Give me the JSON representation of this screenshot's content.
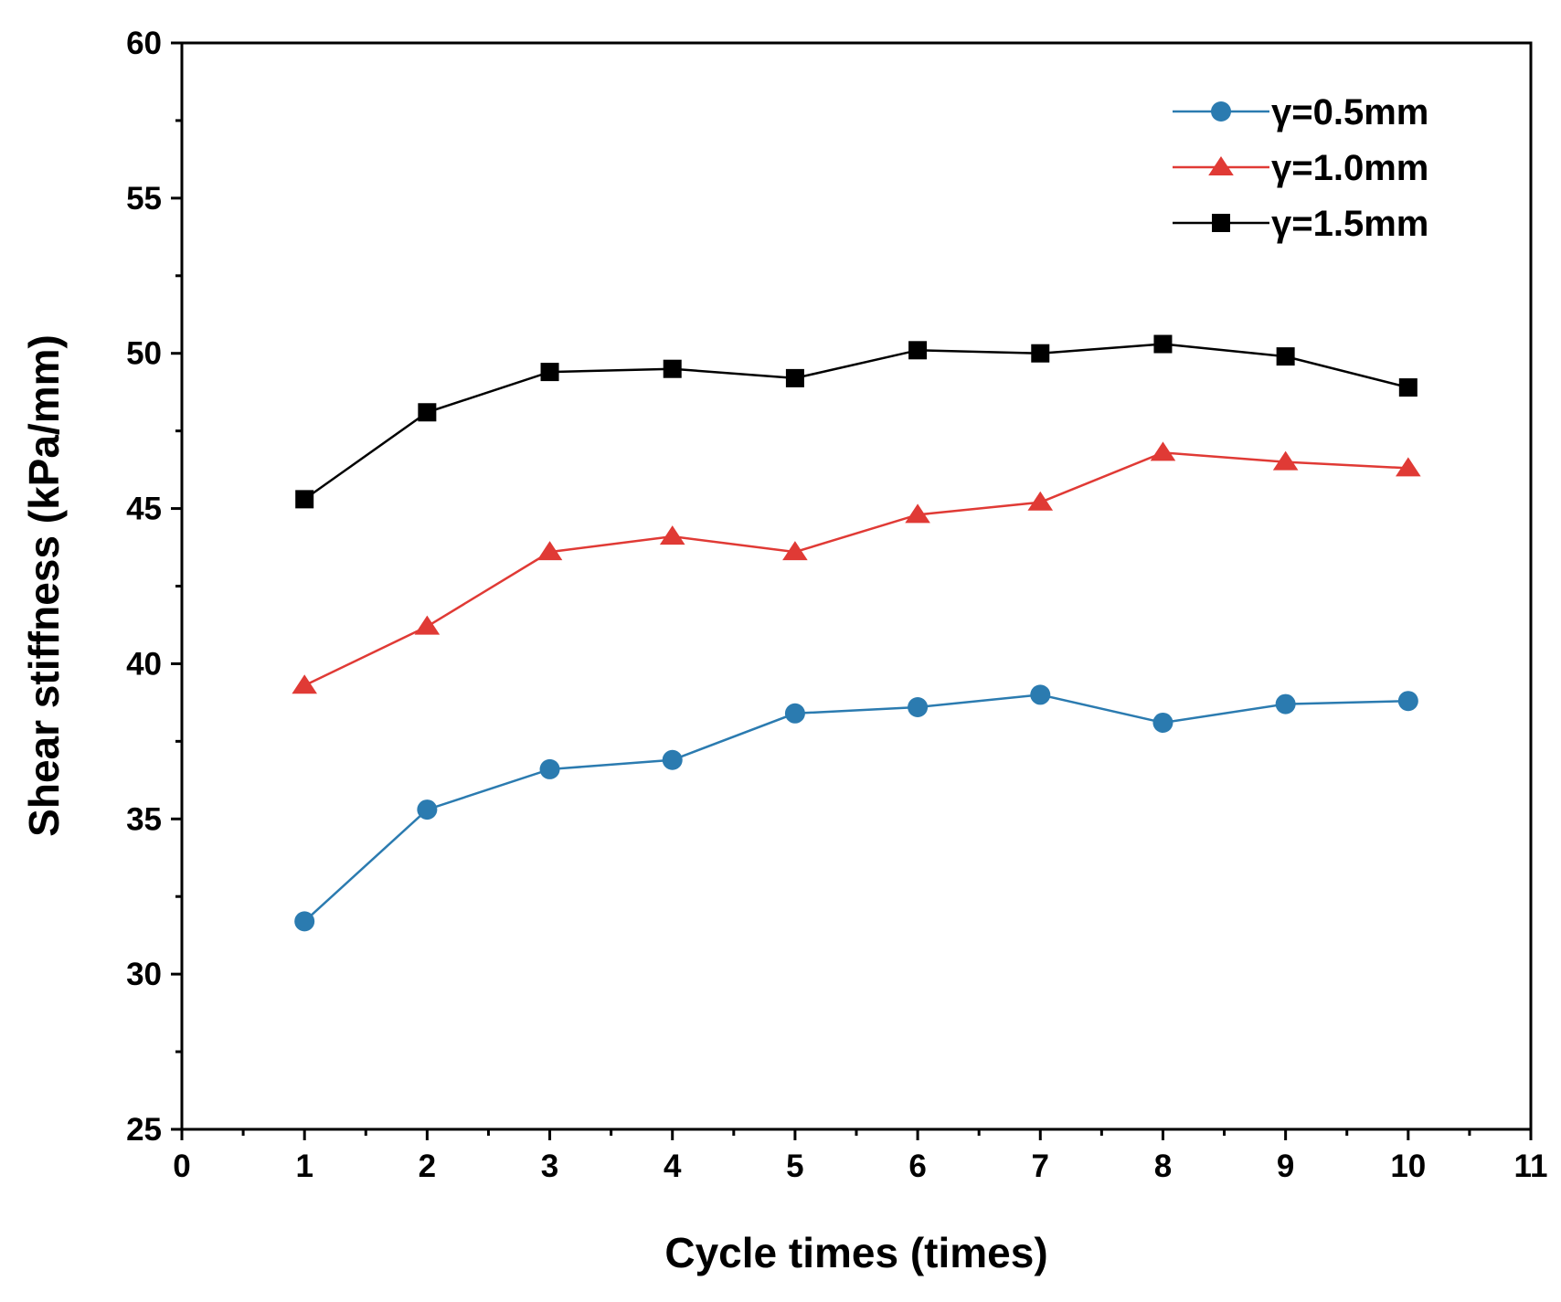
{
  "chart_data": {
    "type": "line",
    "title": "",
    "xlabel": "Cycle times (times)",
    "ylabel": "Shear stiffness (kPa/mm)",
    "xlim": [
      0,
      11
    ],
    "ylim": [
      25,
      60
    ],
    "x_ticks": [
      "0",
      "1",
      "2",
      "3",
      "4",
      "5",
      "6",
      "7",
      "8",
      "9",
      "10",
      "11"
    ],
    "y_ticks": [
      "25",
      "30",
      "35",
      "40",
      "45",
      "50",
      "55",
      "60"
    ],
    "x": [
      1,
      2,
      3,
      4,
      5,
      6,
      7,
      8,
      9,
      10
    ],
    "grid": false,
    "legend_position": "top-right",
    "series": [
      {
        "name": "γ=0.5mm",
        "color": "#2b7bb0",
        "marker": "circle",
        "values": [
          31.7,
          35.3,
          36.6,
          36.9,
          38.4,
          38.6,
          39.0,
          38.1,
          38.7,
          38.8
        ]
      },
      {
        "name": "γ=1.0mm",
        "color": "#e03a35",
        "marker": "triangle",
        "values": [
          39.3,
          41.2,
          43.6,
          44.1,
          43.6,
          44.8,
          45.2,
          46.8,
          46.5,
          46.3
        ]
      },
      {
        "name": "γ=1.5mm",
        "color": "#000000",
        "marker": "square",
        "values": [
          45.3,
          48.1,
          49.4,
          49.5,
          49.2,
          50.1,
          50.0,
          50.3,
          49.9,
          48.9
        ]
      }
    ]
  }
}
